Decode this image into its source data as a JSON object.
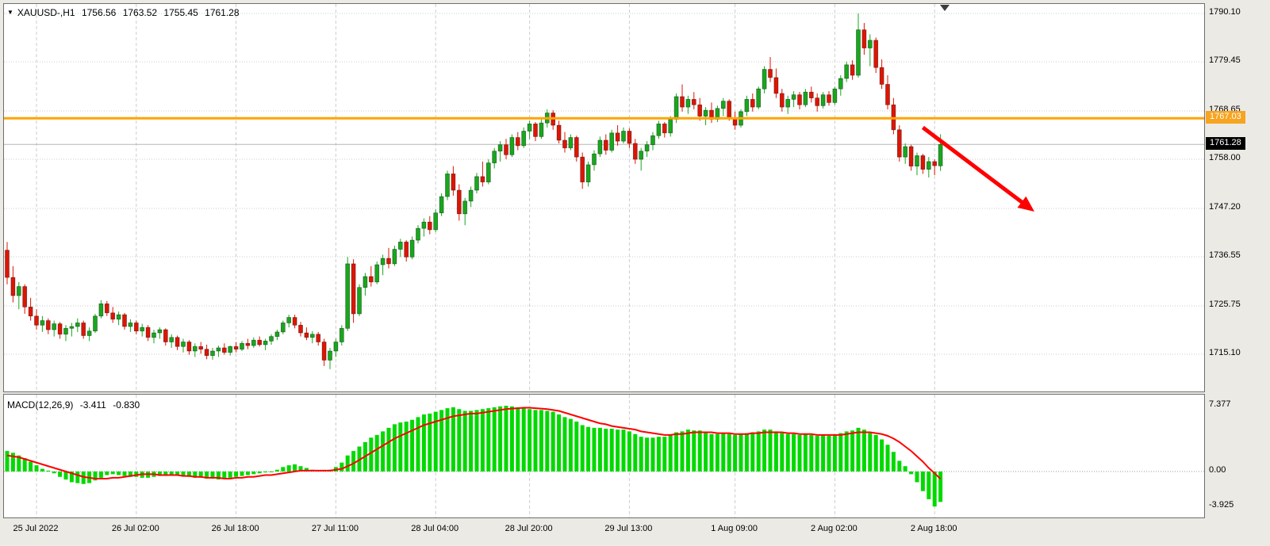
{
  "window": {
    "symbol_period": "XAUUSD-,H1",
    "ohlc": {
      "open": "1756.56",
      "high": "1763.52",
      "low": "1755.45",
      "close": "1761.28"
    }
  },
  "colors": {
    "bull": "#17a81c",
    "bear": "#e01400",
    "macd_hist": "#00d900",
    "macd_signal": "#ff0000",
    "hline": "#ffa400",
    "arrow": "#ff0000",
    "grid": "#cdcdcd"
  },
  "chart_data": {
    "type": "candlestick",
    "symbol": "XAUUSD-",
    "timeframe": "H1",
    "title": "XAUUSD-,H1 1756.56 1763.52 1755.45 1761.28",
    "price_range": {
      "top": 1790.1,
      "bottom": 1715.1
    },
    "price_axis_labels": [
      "1790.10",
      "1779.45",
      "1768.65",
      "1758.00",
      "1747.20",
      "1736.55",
      "1725.75",
      "1715.10"
    ],
    "hline": {
      "price": 1767.03,
      "label": "1767.03"
    },
    "bid": {
      "price": 1761.28,
      "label": "1761.28"
    },
    "time_ticks": [
      {
        "label": "25 Jul 2022",
        "index": 5
      },
      {
        "label": "26 Jul 02:00",
        "index": 22
      },
      {
        "label": "26 Jul 18:00",
        "index": 39
      },
      {
        "label": "27 Jul 11:00",
        "index": 56
      },
      {
        "label": "28 Jul 04:00",
        "index": 73
      },
      {
        "label": "28 Jul 20:00",
        "index": 89
      },
      {
        "label": "29 Jul 13:00",
        "index": 106
      },
      {
        "label": "1 Aug 09:00",
        "index": 124
      },
      {
        "label": "2 Aug 02:00",
        "index": 141
      },
      {
        "label": "2 Aug 18:00",
        "index": 158
      }
    ],
    "candles": [
      [
        1738.0,
        1739.8,
        1730.5,
        1732.0
      ],
      [
        1732.0,
        1734.5,
        1726.5,
        1728.0
      ],
      [
        1728.0,
        1731.0,
        1725.0,
        1730.0
      ],
      [
        1730.0,
        1730.5,
        1724.0,
        1725.5
      ],
      [
        1725.5,
        1727.5,
        1722.5,
        1723.5
      ],
      [
        1723.5,
        1725.0,
        1720.5,
        1721.5
      ],
      [
        1721.5,
        1723.5,
        1720.0,
        1722.5
      ],
      [
        1722.5,
        1723.0,
        1719.5,
        1720.5
      ],
      [
        1720.5,
        1722.5,
        1719.0,
        1721.8
      ],
      [
        1721.8,
        1722.2,
        1718.5,
        1719.5
      ],
      [
        1719.5,
        1721.5,
        1718.0,
        1720.8
      ],
      [
        1720.8,
        1722.0,
        1719.0,
        1721.2
      ],
      [
        1721.2,
        1723.0,
        1720.0,
        1722.0
      ],
      [
        1722.0,
        1722.5,
        1718.5,
        1719.2
      ],
      [
        1719.2,
        1721.0,
        1718.0,
        1720.2
      ],
      [
        1720.2,
        1724.0,
        1719.8,
        1723.5
      ],
      [
        1723.5,
        1727.0,
        1723.0,
        1726.2
      ],
      [
        1726.2,
        1726.8,
        1723.5,
        1724.2
      ],
      [
        1724.2,
        1725.5,
        1722.0,
        1722.8
      ],
      [
        1722.8,
        1724.5,
        1721.5,
        1723.8
      ],
      [
        1723.8,
        1724.2,
        1720.5,
        1721.2
      ],
      [
        1721.2,
        1722.8,
        1720.0,
        1722.0
      ],
      [
        1722.0,
        1722.5,
        1719.5,
        1720.2
      ],
      [
        1720.2,
        1721.8,
        1719.0,
        1721.0
      ],
      [
        1721.0,
        1721.5,
        1718.0,
        1718.8
      ],
      [
        1718.8,
        1720.5,
        1717.5,
        1719.8
      ],
      [
        1719.8,
        1721.0,
        1718.5,
        1720.5
      ],
      [
        1720.5,
        1720.8,
        1717.0,
        1717.8
      ],
      [
        1717.8,
        1719.5,
        1716.5,
        1718.8
      ],
      [
        1718.8,
        1719.2,
        1716.0,
        1716.8
      ],
      [
        1716.8,
        1718.5,
        1715.5,
        1717.8
      ],
      [
        1717.8,
        1718.2,
        1715.0,
        1715.8
      ],
      [
        1715.8,
        1717.5,
        1714.5,
        1716.8
      ],
      [
        1716.8,
        1717.8,
        1715.2,
        1716.2
      ],
      [
        1716.2,
        1717.2,
        1714.0,
        1714.8
      ],
      [
        1714.8,
        1716.5,
        1713.9,
        1715.8
      ],
      [
        1715.8,
        1717.0,
        1714.5,
        1716.5
      ],
      [
        1716.5,
        1717.5,
        1715.0,
        1715.5
      ],
      [
        1715.5,
        1717.0,
        1714.8,
        1716.8
      ],
      [
        1716.8,
        1717.8,
        1715.5,
        1716.2
      ],
      [
        1716.2,
        1718.0,
        1715.8,
        1717.5
      ],
      [
        1717.5,
        1718.5,
        1716.2,
        1717.0
      ],
      [
        1717.0,
        1718.8,
        1716.5,
        1718.2
      ],
      [
        1718.2,
        1719.0,
        1716.8,
        1717.2
      ],
      [
        1717.2,
        1718.5,
        1716.0,
        1718.0
      ],
      [
        1718.0,
        1719.5,
        1717.2,
        1719.0
      ],
      [
        1719.0,
        1720.5,
        1718.2,
        1720.0
      ],
      [
        1720.0,
        1722.5,
        1719.5,
        1722.0
      ],
      [
        1722.0,
        1723.8,
        1721.0,
        1723.2
      ],
      [
        1723.2,
        1723.8,
        1720.8,
        1721.5
      ],
      [
        1721.5,
        1722.2,
        1719.0,
        1719.8
      ],
      [
        1719.8,
        1721.0,
        1718.2,
        1718.8
      ],
      [
        1718.8,
        1720.2,
        1717.5,
        1719.5
      ],
      [
        1719.5,
        1720.0,
        1717.0,
        1717.8
      ],
      [
        1717.8,
        1718.5,
        1712.5,
        1713.8
      ],
      [
        1713.8,
        1716.5,
        1711.8,
        1715.8
      ],
      [
        1715.8,
        1718.5,
        1714.5,
        1717.8
      ],
      [
        1717.8,
        1721.5,
        1717.0,
        1720.8
      ],
      [
        1720.8,
        1736.5,
        1720.2,
        1735.0
      ],
      [
        1735.0,
        1736.0,
        1722.0,
        1724.0
      ],
      [
        1724.0,
        1730.5,
        1723.5,
        1729.8
      ],
      [
        1729.8,
        1733.0,
        1728.0,
        1732.2
      ],
      [
        1732.2,
        1734.5,
        1730.0,
        1731.0
      ],
      [
        1731.0,
        1735.5,
        1730.5,
        1734.8
      ],
      [
        1734.8,
        1737.0,
        1732.5,
        1736.2
      ],
      [
        1736.2,
        1738.5,
        1734.0,
        1735.0
      ],
      [
        1735.0,
        1739.0,
        1734.5,
        1738.2
      ],
      [
        1738.2,
        1740.5,
        1736.5,
        1739.8
      ],
      [
        1739.8,
        1740.2,
        1735.5,
        1736.5
      ],
      [
        1736.5,
        1741.0,
        1736.0,
        1740.2
      ],
      [
        1740.2,
        1743.5,
        1739.5,
        1742.8
      ],
      [
        1742.8,
        1745.0,
        1741.0,
        1744.2
      ],
      [
        1744.2,
        1745.5,
        1741.5,
        1742.5
      ],
      [
        1742.5,
        1747.0,
        1742.0,
        1746.2
      ],
      [
        1746.2,
        1750.5,
        1745.5,
        1749.8
      ],
      [
        1749.8,
        1755.5,
        1749.0,
        1754.8
      ],
      [
        1754.8,
        1756.5,
        1750.0,
        1751.2
      ],
      [
        1751.2,
        1752.5,
        1744.5,
        1746.0
      ],
      [
        1746.0,
        1749.5,
        1743.5,
        1748.8
      ],
      [
        1748.8,
        1752.0,
        1747.5,
        1751.2
      ],
      [
        1751.2,
        1755.0,
        1750.5,
        1754.2
      ],
      [
        1754.2,
        1757.5,
        1752.0,
        1753.0
      ],
      [
        1753.0,
        1758.0,
        1752.5,
        1757.2
      ],
      [
        1757.2,
        1760.5,
        1756.0,
        1759.8
      ],
      [
        1759.8,
        1762.0,
        1757.5,
        1761.2
      ],
      [
        1761.2,
        1762.5,
        1758.0,
        1759.0
      ],
      [
        1759.0,
        1763.5,
        1758.5,
        1762.8
      ],
      [
        1762.8,
        1764.0,
        1760.0,
        1761.0
      ],
      [
        1761.0,
        1765.0,
        1760.5,
        1764.2
      ],
      [
        1764.2,
        1766.5,
        1762.5,
        1765.8
      ],
      [
        1765.8,
        1766.2,
        1762.0,
        1763.0
      ],
      [
        1763.0,
        1766.8,
        1762.5,
        1766.0
      ],
      [
        1766.0,
        1769.0,
        1765.0,
        1768.2
      ],
      [
        1768.2,
        1768.8,
        1764.5,
        1765.5
      ],
      [
        1765.5,
        1766.5,
        1761.5,
        1762.2
      ],
      [
        1762.2,
        1764.0,
        1759.5,
        1760.5
      ],
      [
        1760.5,
        1763.5,
        1760.0,
        1762.8
      ],
      [
        1762.8,
        1763.2,
        1757.5,
        1758.5
      ],
      [
        1758.5,
        1759.5,
        1751.5,
        1753.0
      ],
      [
        1753.0,
        1757.5,
        1752.0,
        1756.8
      ],
      [
        1756.8,
        1760.0,
        1755.5,
        1759.2
      ],
      [
        1759.2,
        1763.0,
        1758.5,
        1762.2
      ],
      [
        1762.2,
        1763.5,
        1759.0,
        1760.0
      ],
      [
        1760.0,
        1764.5,
        1759.5,
        1763.8
      ],
      [
        1763.8,
        1765.5,
        1761.0,
        1762.0
      ],
      [
        1762.0,
        1765.0,
        1761.5,
        1764.2
      ],
      [
        1764.2,
        1764.8,
        1760.5,
        1761.5
      ],
      [
        1761.5,
        1762.5,
        1757.0,
        1758.0
      ],
      [
        1758.0,
        1760.5,
        1755.5,
        1759.8
      ],
      [
        1759.8,
        1762.0,
        1758.5,
        1761.2
      ],
      [
        1761.2,
        1764.0,
        1760.0,
        1763.2
      ],
      [
        1763.2,
        1766.5,
        1762.5,
        1765.8
      ],
      [
        1765.8,
        1766.2,
        1762.8,
        1763.8
      ],
      [
        1763.8,
        1767.5,
        1763.0,
        1766.8
      ],
      [
        1766.8,
        1772.5,
        1766.0,
        1771.8
      ],
      [
        1771.8,
        1774.5,
        1768.5,
        1769.5
      ],
      [
        1769.5,
        1772.0,
        1768.0,
        1771.2
      ],
      [
        1771.2,
        1772.8,
        1769.0,
        1770.0
      ],
      [
        1770.0,
        1771.5,
        1766.5,
        1767.5
      ],
      [
        1767.5,
        1769.5,
        1765.5,
        1768.8
      ],
      [
        1768.8,
        1770.5,
        1766.0,
        1766.8
      ],
      [
        1766.8,
        1769.8,
        1766.2,
        1769.2
      ],
      [
        1769.2,
        1771.5,
        1767.5,
        1770.8
      ],
      [
        1770.8,
        1771.2,
        1766.5,
        1767.2
      ],
      [
        1767.2,
        1768.5,
        1764.5,
        1765.5
      ],
      [
        1765.5,
        1769.0,
        1765.0,
        1768.5
      ],
      [
        1768.5,
        1772.0,
        1767.5,
        1771.2
      ],
      [
        1771.2,
        1772.5,
        1768.5,
        1769.5
      ],
      [
        1769.5,
        1774.0,
        1769.0,
        1773.5
      ],
      [
        1773.5,
        1778.5,
        1772.5,
        1777.8
      ],
      [
        1777.8,
        1780.5,
        1775.0,
        1776.0
      ],
      [
        1776.0,
        1778.0,
        1771.5,
        1772.5
      ],
      [
        1772.5,
        1773.5,
        1768.5,
        1769.5
      ],
      [
        1769.5,
        1772.0,
        1768.0,
        1771.2
      ],
      [
        1771.2,
        1773.0,
        1769.5,
        1772.2
      ],
      [
        1772.2,
        1772.8,
        1769.0,
        1770.0
      ],
      [
        1770.0,
        1773.5,
        1769.5,
        1772.8
      ],
      [
        1772.8,
        1774.0,
        1770.5,
        1771.5
      ],
      [
        1771.5,
        1772.5,
        1768.5,
        1769.8
      ],
      [
        1769.8,
        1772.8,
        1769.2,
        1772.2
      ],
      [
        1772.2,
        1773.0,
        1769.8,
        1770.5
      ],
      [
        1770.5,
        1774.0,
        1770.0,
        1773.5
      ],
      [
        1773.5,
        1776.5,
        1772.0,
        1775.8
      ],
      [
        1775.8,
        1779.5,
        1775.0,
        1778.8
      ],
      [
        1778.8,
        1779.8,
        1775.5,
        1776.5
      ],
      [
        1776.5,
        1790.1,
        1776.0,
        1786.5
      ],
      [
        1786.5,
        1788.0,
        1781.0,
        1782.5
      ],
      [
        1782.5,
        1785.5,
        1778.5,
        1784.2
      ],
      [
        1784.2,
        1784.8,
        1777.0,
        1778.2
      ],
      [
        1778.2,
        1780.0,
        1773.5,
        1774.5
      ],
      [
        1774.5,
        1776.5,
        1769.0,
        1770.0
      ],
      [
        1770.0,
        1771.5,
        1763.5,
        1764.5
      ],
      [
        1764.5,
        1765.5,
        1757.5,
        1758.5
      ],
      [
        1758.5,
        1761.5,
        1757.0,
        1760.8
      ],
      [
        1760.8,
        1761.2,
        1755.5,
        1756.5
      ],
      [
        1756.5,
        1759.5,
        1754.5,
        1758.8
      ],
      [
        1758.8,
        1759.2,
        1754.8,
        1755.8
      ],
      [
        1755.8,
        1758.5,
        1754.0,
        1757.5
      ],
      [
        1757.5,
        1758.0,
        1754.5,
        1756.6
      ],
      [
        1756.56,
        1763.52,
        1755.45,
        1761.28
      ]
    ],
    "macd": {
      "label": "MACD(12,26,9)",
      "main_text": "-3.411",
      "signal_text": "-0.830",
      "axis_labels": [
        "7.377",
        "0.00",
        "-3.925"
      ],
      "histogram": [
        2.3,
        2.1,
        1.8,
        1.5,
        1.1,
        0.7,
        0.3,
        0.1,
        -0.2,
        -0.6,
        -0.9,
        -1.2,
        -1.3,
        -1.4,
        -1.3,
        -1.0,
        -0.7,
        -0.4,
        -0.3,
        -0.4,
        -0.5,
        -0.6,
        -0.6,
        -0.7,
        -0.7,
        -0.6,
        -0.5,
        -0.5,
        -0.4,
        -0.4,
        -0.5,
        -0.6,
        -0.7,
        -0.7,
        -0.8,
        -0.8,
        -0.9,
        -0.8,
        -0.7,
        -0.6,
        -0.5,
        -0.4,
        -0.3,
        -0.2,
        -0.1,
        0.0,
        0.2,
        0.5,
        0.7,
        0.8,
        0.6,
        0.4,
        0.2,
        0.1,
        0.1,
        0.2,
        0.5,
        1.0,
        1.8,
        2.3,
        2.8,
        3.3,
        3.8,
        4.1,
        4.5,
        4.9,
        5.3,
        5.5,
        5.6,
        5.8,
        6.1,
        6.4,
        6.5,
        6.7,
        6.9,
        7.1,
        7.2,
        7.0,
        6.8,
        6.8,
        6.9,
        7.0,
        7.1,
        7.2,
        7.3,
        7.377,
        7.3,
        7.2,
        7.1,
        7.0,
        6.9,
        6.9,
        6.8,
        6.7,
        6.4,
        6.1,
        5.9,
        5.6,
        5.2,
        5.0,
        4.9,
        4.9,
        4.8,
        4.8,
        4.7,
        4.7,
        4.5,
        4.2,
        3.9,
        3.8,
        3.8,
        3.9,
        3.9,
        4.1,
        4.4,
        4.5,
        4.7,
        4.6,
        4.6,
        4.4,
        4.2,
        4.2,
        4.3,
        4.2,
        4.1,
        4.2,
        4.3,
        4.4,
        4.5,
        4.7,
        4.7,
        4.5,
        4.3,
        4.2,
        4.2,
        4.1,
        4.2,
        4.1,
        4.0,
        4.1,
        4.0,
        4.1,
        4.3,
        4.5,
        4.6,
        4.9,
        4.7,
        4.3,
        4.1,
        3.6,
        3.0,
        2.2,
        1.2,
        0.6,
        -0.3,
        -1.2,
        -2.2,
        -3.1,
        -3.925,
        -3.411
      ],
      "signal": [
        1.8,
        1.7,
        1.6,
        1.4,
        1.2,
        1.0,
        0.8,
        0.6,
        0.4,
        0.2,
        0.0,
        -0.2,
        -0.4,
        -0.6,
        -0.7,
        -0.8,
        -0.8,
        -0.8,
        -0.7,
        -0.7,
        -0.6,
        -0.5,
        -0.4,
        -0.3,
        -0.3,
        -0.3,
        -0.4,
        -0.4,
        -0.4,
        -0.4,
        -0.5,
        -0.5,
        -0.6,
        -0.6,
        -0.7,
        -0.7,
        -0.7,
        -0.8,
        -0.8,
        -0.7,
        -0.7,
        -0.6,
        -0.6,
        -0.5,
        -0.4,
        -0.4,
        -0.3,
        -0.2,
        -0.1,
        0.0,
        0.1,
        0.1,
        0.1,
        0.1,
        0.1,
        0.1,
        0.2,
        0.3,
        0.6,
        0.9,
        1.3,
        1.7,
        2.1,
        2.5,
        2.9,
        3.3,
        3.7,
        4.0,
        4.3,
        4.6,
        4.9,
        5.2,
        5.4,
        5.6,
        5.8,
        6.0,
        6.2,
        6.3,
        6.4,
        6.5,
        6.5,
        6.6,
        6.7,
        6.8,
        6.9,
        7.0,
        7.05,
        7.1,
        7.15,
        7.15,
        7.1,
        7.05,
        7.0,
        6.9,
        6.8,
        6.6,
        6.4,
        6.2,
        6.0,
        5.8,
        5.6,
        5.4,
        5.3,
        5.1,
        5.0,
        4.9,
        4.8,
        4.7,
        4.5,
        4.4,
        4.3,
        4.2,
        4.1,
        4.1,
        4.2,
        4.2,
        4.3,
        4.4,
        4.4,
        4.4,
        4.4,
        4.3,
        4.3,
        4.3,
        4.2,
        4.2,
        4.2,
        4.3,
        4.3,
        4.4,
        4.4,
        4.4,
        4.4,
        4.3,
        4.3,
        4.2,
        4.2,
        4.2,
        4.1,
        4.1,
        4.1,
        4.1,
        4.1,
        4.2,
        4.3,
        4.4,
        4.4,
        4.4,
        4.3,
        4.2,
        4.0,
        3.7,
        3.3,
        2.8,
        2.3,
        1.7,
        1.1,
        0.4,
        -0.2,
        -0.83
      ]
    },
    "arrow": {
      "from_index": 156,
      "from_price": 1765.0,
      "to_index": 175,
      "to_price": 1746.5
    }
  }
}
